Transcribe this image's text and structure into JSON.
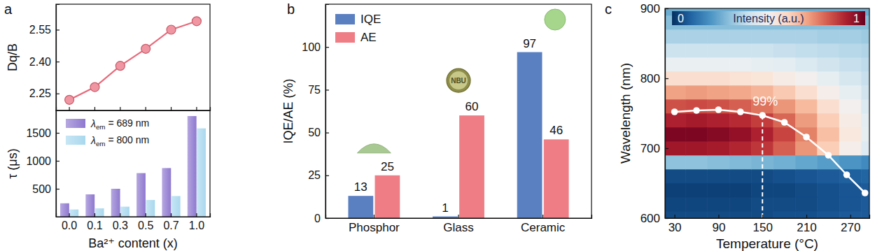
{
  "chart_data": [
    {
      "type": "line",
      "title": "a",
      "y_label": "Dq/B",
      "categories": [
        "0.0",
        "0.1",
        "0.3",
        "0.5",
        "0.7",
        "1.0"
      ],
      "values": [
        2.22,
        2.28,
        2.38,
        2.46,
        2.55,
        2.59
      ],
      "color": "#e8697a",
      "marker": "circle",
      "ylim": [
        2.17,
        2.67
      ],
      "yticks": [
        2.25,
        {
          "value": 2.4,
          "label": "2.40"
        },
        2.55
      ],
      "tick_labels": "y"
    },
    {
      "type": "bar",
      "x_label": "Ba²⁺ content (x)",
      "y_label": "τ (μs)",
      "categories": [
        "0.0",
        "0.1",
        "0.3",
        "0.5",
        "0.7",
        "1.0"
      ],
      "series": [
        {
          "name": "λem = 689 nm",
          "color": "#8e78cf",
          "values": [
            240,
            400,
            500,
            780,
            870,
            1800
          ]
        },
        {
          "name": "λem = 800 nm",
          "color": "#a9d8ee",
          "values": [
            130,
            150,
            180,
            300,
            370,
            1580
          ]
        }
      ],
      "ylim": [
        0,
        1900
      ],
      "yticks": [
        500,
        1000,
        1500
      ],
      "legend": "upper left"
    },
    {
      "type": "bar",
      "title": "b",
      "y_label": "IQE/AE (%)",
      "categories": [
        "Phosphor",
        "Glass",
        "Ceramic"
      ],
      "series": [
        {
          "name": "IQE",
          "color": "#5b80c2",
          "values": [
            13,
            1,
            97
          ]
        },
        {
          "name": "AE",
          "color": "#ee7d85",
          "values": [
            25,
            60,
            46
          ]
        }
      ],
      "ylim": [
        0,
        125
      ],
      "yticks": [
        0,
        25,
        50,
        75,
        100
      ],
      "data_labels": true,
      "legend": "upper left",
      "annotations": [
        "NBU"
      ]
    },
    {
      "type": "heatmap",
      "title": "c",
      "x_label": "Temperature (°C)",
      "y_label": "Wavelength (nm)",
      "xlim": [
        17,
        296
      ],
      "xticks": [
        30,
        90,
        150,
        210,
        270
      ],
      "ylim": [
        600,
        900
      ],
      "yticks": [
        600,
        700,
        800,
        900
      ],
      "heatmap": {
        "x": [
          30,
          60,
          90,
          120,
          150,
          180,
          210,
          240,
          270,
          300
        ],
        "y": [
          600,
          620,
          640,
          660,
          680,
          700,
          720,
          740,
          760,
          780,
          800,
          820,
          840,
          860,
          880,
          900
        ],
        "values": [
          [
            0.05,
            0.05,
            0.05,
            0.05,
            0.05,
            0.06,
            0.06,
            0.07,
            0.08,
            0.08
          ],
          [
            0.04,
            0.04,
            0.04,
            0.04,
            0.05,
            0.05,
            0.05,
            0.06,
            0.07,
            0.08
          ],
          [
            0.03,
            0.03,
            0.03,
            0.03,
            0.04,
            0.04,
            0.05,
            0.06,
            0.07,
            0.08
          ],
          [
            0.05,
            0.05,
            0.05,
            0.05,
            0.05,
            0.06,
            0.07,
            0.08,
            0.09,
            0.1
          ],
          [
            0.3,
            0.3,
            0.29,
            0.28,
            0.27,
            0.26,
            0.24,
            0.22,
            0.2,
            0.18
          ],
          [
            0.92,
            0.92,
            0.91,
            0.89,
            0.86,
            0.8,
            0.72,
            0.62,
            0.52,
            0.44
          ],
          [
            0.97,
            0.97,
            0.96,
            0.94,
            0.9,
            0.84,
            0.75,
            0.65,
            0.55,
            0.46
          ],
          [
            0.9,
            0.91,
            0.9,
            0.88,
            0.85,
            0.79,
            0.71,
            0.62,
            0.53,
            0.45
          ],
          [
            0.82,
            0.83,
            0.82,
            0.8,
            0.77,
            0.72,
            0.66,
            0.58,
            0.5,
            0.43
          ],
          [
            0.7,
            0.71,
            0.7,
            0.69,
            0.67,
            0.63,
            0.58,
            0.52,
            0.46,
            0.41
          ],
          [
            0.58,
            0.58,
            0.58,
            0.57,
            0.56,
            0.53,
            0.5,
            0.46,
            0.42,
            0.39
          ],
          [
            0.47,
            0.47,
            0.47,
            0.47,
            0.46,
            0.45,
            0.43,
            0.41,
            0.39,
            0.37
          ],
          [
            0.4,
            0.4,
            0.4,
            0.4,
            0.4,
            0.39,
            0.38,
            0.37,
            0.36,
            0.35
          ],
          [
            0.34,
            0.34,
            0.34,
            0.34,
            0.34,
            0.34,
            0.34,
            0.33,
            0.33,
            0.32
          ],
          [
            0.29,
            0.29,
            0.29,
            0.29,
            0.29,
            0.29,
            0.29,
            0.29,
            0.29,
            0.29
          ],
          [
            0.25,
            0.25,
            0.25,
            0.25,
            0.25,
            0.25,
            0.25,
            0.25,
            0.25,
            0.25
          ]
        ]
      },
      "colorbar": {
        "label": "Intensity (a.u.)",
        "range": [
          0,
          1
        ],
        "ticks": [
          0,
          1
        ]
      },
      "series": [
        {
          "type": "line",
          "color": "#ffffff",
          "marker": "circle",
          "x": [
            30,
            60,
            90,
            120,
            150,
            180,
            210,
            240,
            265,
            290
          ],
          "values": [
            752,
            754,
            755,
            752,
            747,
            737,
            716,
            690,
            662,
            636
          ]
        }
      ],
      "annotations": [
        {
          "x": 150,
          "text": "99%"
        }
      ]
    }
  ]
}
